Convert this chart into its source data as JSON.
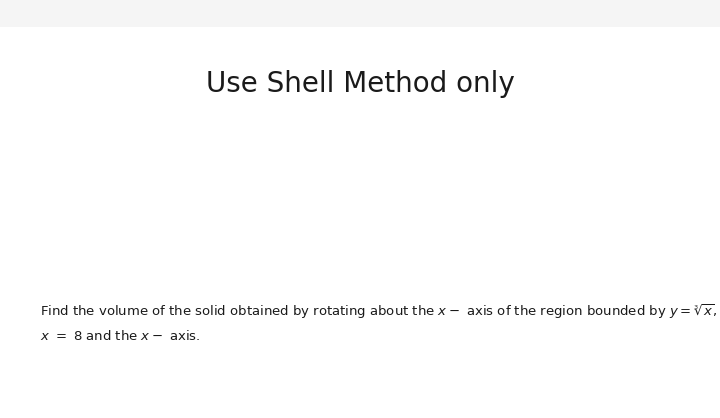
{
  "title": "Use Shell Method only",
  "title_fontsize": 20,
  "title_color": "#1a1a1a",
  "body_line1": "Find the volume of the solid obtained by rotating about the $x -$ axis of the region bounded by $y = \\sqrt[3]{x}$,",
  "body_line2": "$x \\ = \\ 8$ and the $x -$ axis.",
  "body_fontsize": 9.5,
  "body_color": "#1a1a1a",
  "background_color": "#f5f5f5",
  "content_background_color": "#ffffff"
}
